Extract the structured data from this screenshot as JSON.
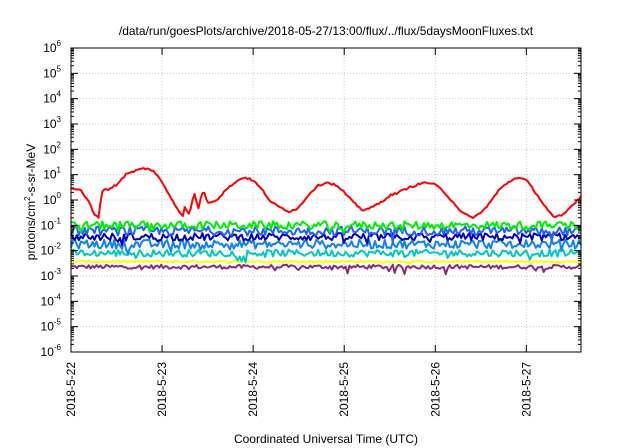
{
  "chart_data": {
    "type": "line",
    "title": "/data/run/goesPlots/archive/2018-05-27/13:00/flux/../flux/5daysMoonFluxes.txt",
    "xlabel": "Coordinated Universal Time (UTC)",
    "ylabel": {
      "pre": "protons/cm",
      "sup": "2",
      "post": "-s-sr-MeV"
    },
    "yscale": "log",
    "ylim_exp": [
      -6,
      6
    ],
    "xlim": [
      0,
      5.6
    ],
    "x_unit": "days since 2018-5-22 00:00",
    "x_ticks": [
      {
        "x": 0,
        "label": "2018-5-22"
      },
      {
        "x": 1,
        "label": "2018-5-23"
      },
      {
        "x": 2,
        "label": "2018-5-24"
      },
      {
        "x": 3,
        "label": "2018-5-25"
      },
      {
        "x": 4,
        "label": "2018-5-26"
      },
      {
        "x": 5,
        "label": "2018-5-27"
      }
    ],
    "grid": true,
    "series": [
      {
        "color": "#ff0000",
        "noise": 0.08,
        "x": [
          0,
          0.1,
          0.2,
          0.25,
          0.3,
          0.35,
          0.4,
          0.5,
          0.6,
          0.7,
          0.8,
          0.9,
          1.0,
          1.1,
          1.2,
          1.22,
          1.25,
          1.3,
          1.35,
          1.4,
          1.45,
          1.5,
          1.6,
          1.7,
          1.8,
          1.9,
          2.0,
          2.1,
          2.2,
          2.3,
          2.4,
          2.5,
          2.6,
          2.7,
          2.8,
          2.9,
          3.0,
          3.1,
          3.2,
          3.3,
          3.4,
          3.5,
          3.6,
          3.7,
          3.8,
          3.9,
          4.0,
          4.1,
          4.2,
          4.3,
          4.4,
          4.5,
          4.6,
          4.7,
          4.8,
          4.9,
          5.0,
          5.1,
          5.2,
          5.3,
          5.4,
          5.5,
          5.6
        ],
        "y": [
          3,
          2.5,
          0.8,
          0.3,
          0.2,
          3,
          2.5,
          4,
          10,
          14,
          18,
          15,
          5,
          1.2,
          0.3,
          0.2,
          0.5,
          0.25,
          2,
          0.5,
          2.5,
          0.8,
          1,
          2.5,
          5,
          8,
          6,
          2.5,
          0.8,
          0.5,
          0.35,
          0.5,
          1.5,
          3.5,
          5,
          4,
          2,
          0.8,
          0.4,
          0.5,
          0.8,
          1.5,
          2,
          3,
          4,
          5,
          4,
          2,
          0.8,
          0.3,
          0.2,
          0.3,
          0.8,
          2.5,
          5,
          8,
          6,
          2,
          0.6,
          0.2,
          0.25,
          0.6,
          1.4
        ]
      },
      {
        "color": "#00ee00",
        "mean": 0.1,
        "amp": 0.16,
        "spikes": 0.3
      },
      {
        "color": "#2060ff",
        "mean": 0.06,
        "amp": 0.18,
        "spikes": 0.35
      },
      {
        "color": "#0000c0",
        "mean": 0.035,
        "amp": 0.15,
        "spikes": 0.3
      },
      {
        "color": "#1080ff",
        "mean": 0.018,
        "amp": 0.18,
        "spikes": 0.35
      },
      {
        "color": "#00c8c8",
        "mean": 0.008,
        "amp": 0.14,
        "spikes": 0.3
      },
      {
        "color": "#ffff00",
        "mean": 0.0037,
        "amp": 0.04,
        "spikes": 0.05
      },
      {
        "color": "#8b2b7a",
        "mean": 0.0023,
        "amp": 0.08,
        "spikes": 0.25
      }
    ]
  }
}
